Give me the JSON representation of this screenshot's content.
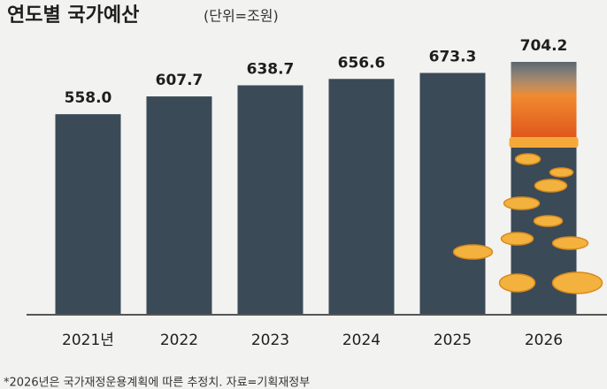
{
  "chart_data": {
    "type": "bar",
    "title": "연도별 국가예산",
    "subtitle": "(단위=조원)",
    "categories": [
      "2021년",
      "2022",
      "2023",
      "2024",
      "2025",
      "2026"
    ],
    "values": [
      558.0,
      607.7,
      638.7,
      656.6,
      673.3,
      704.2
    ],
    "value_labels": [
      "558.0",
      "607.7",
      "638.7",
      "656.6",
      "673.3",
      "704.2"
    ],
    "color": "#3b4a57",
    "note": "*2026년은 국가재정운용계획에 따른 추정치. 자료=기획재정부"
  }
}
